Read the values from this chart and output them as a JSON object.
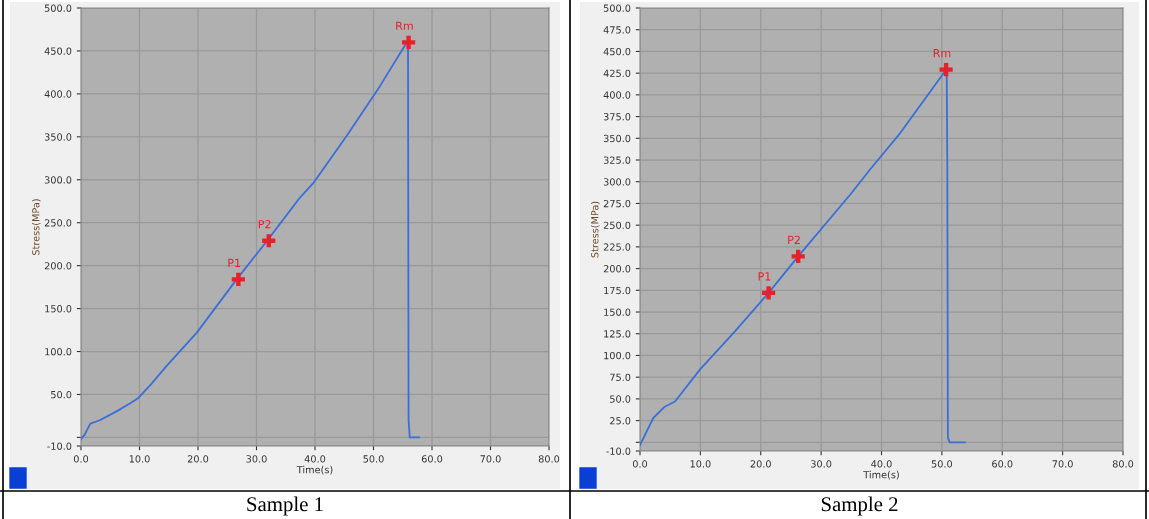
{
  "chart_data": [
    {
      "type": "line",
      "xlabel": "Time(s)",
      "ylabel": "Stress(MPa)",
      "xlim": [
        0,
        80
      ],
      "ylim": [
        -10,
        500
      ],
      "grid": true,
      "xticks": [
        {
          "value": 0,
          "label": "0.0"
        },
        {
          "value": 10,
          "label": "10.0"
        },
        {
          "value": 20,
          "label": "20.0"
        },
        {
          "value": 30,
          "label": "30.0"
        },
        {
          "value": 40,
          "label": "40.0"
        },
        {
          "value": 50,
          "label": "50.0"
        },
        {
          "value": 60,
          "label": "60.0"
        },
        {
          "value": 70,
          "label": "70.0"
        },
        {
          "value": 80,
          "label": "80.0"
        }
      ],
      "yticks": [
        {
          "value": -10,
          "label": "-10.0"
        },
        {
          "value": 0,
          "label": null
        },
        {
          "value": 50,
          "label": "50.0"
        },
        {
          "value": 100,
          "label": "100.0"
        },
        {
          "value": 150,
          "label": "150.0"
        },
        {
          "value": 200,
          "label": "200.0"
        },
        {
          "value": 250,
          "label": "250.0"
        },
        {
          "value": 300,
          "label": "300.0"
        },
        {
          "value": 350,
          "label": "350.0"
        },
        {
          "value": 400,
          "label": "400.0"
        },
        {
          "value": 450,
          "label": "450.0"
        },
        {
          "value": 500,
          "label": "500.0"
        }
      ],
      "series": [
        {
          "color": "#3a6fd8",
          "marker": "none",
          "x": [
            0,
            0.6,
            1.6,
            3.2,
            6,
            8.5,
            9.8,
            12,
            14.6,
            19.8,
            26.6,
            31.7,
            37.4,
            39.7,
            45.4,
            51.1,
            55.6,
            55.9,
            56.0,
            56.2,
            57.8
          ],
          "values": [
            -2,
            3,
            16,
            20,
            30,
            40,
            46,
            62,
            83,
            122,
            184,
            228,
            279,
            296,
            351,
            409,
            459,
            459,
            20,
            0,
            0
          ]
        },
        {
          "type": "scatter",
          "color": "#e8202a",
          "marker": "cross",
          "x": [
            26.9,
            32.1,
            56.0
          ],
          "values": [
            184,
            229,
            460
          ]
        }
      ],
      "annotations": [
        {
          "text": "P1",
          "x": 26.9,
          "y": 184
        },
        {
          "text": "P2",
          "x": 32.1,
          "y": 229
        },
        {
          "text": "Rm",
          "x": 56.0,
          "y": 460
        },
        "Sample 1"
      ]
    },
    {
      "type": "line",
      "xlabel": "Time(s)",
      "ylabel": "Stress(MPa)",
      "xlim": [
        0,
        80
      ],
      "ylim": [
        -10,
        500
      ],
      "grid": true,
      "xticks": [
        {
          "value": 0,
          "label": "0.0"
        },
        {
          "value": 10,
          "label": "10.0"
        },
        {
          "value": 20,
          "label": "20.0"
        },
        {
          "value": 30,
          "label": "30.0"
        },
        {
          "value": 40,
          "label": "40.0"
        },
        {
          "value": 50,
          "label": "50.0"
        },
        {
          "value": 60,
          "label": "60.0"
        },
        {
          "value": 70,
          "label": "70.0"
        },
        {
          "value": 80,
          "label": "80.0"
        }
      ],
      "yticks": [
        {
          "value": -10,
          "label": "-10.0"
        },
        {
          "value": 0,
          "label": null
        },
        {
          "value": 25,
          "label": "25.0"
        },
        {
          "value": 50,
          "label": "50.0"
        },
        {
          "value": 75,
          "label": "75.0"
        },
        {
          "value": 100,
          "label": "100.0"
        },
        {
          "value": 125,
          "label": "125.0"
        },
        {
          "value": 150,
          "label": "150.0"
        },
        {
          "value": 175,
          "label": "175.0"
        },
        {
          "value": 200,
          "label": "200.0"
        },
        {
          "value": 225,
          "label": "225.0"
        },
        {
          "value": 250,
          "label": "250.0"
        },
        {
          "value": 275,
          "label": "275.0"
        },
        {
          "value": 300,
          "label": "300.0"
        },
        {
          "value": 325,
          "label": "325.0"
        },
        {
          "value": 350,
          "label": "350.0"
        },
        {
          "value": 375,
          "label": "375.0"
        },
        {
          "value": 400,
          "label": "400.0"
        },
        {
          "value": 425,
          "label": "425.0"
        },
        {
          "value": 450,
          "label": "450.0"
        },
        {
          "value": 475,
          "label": "475.0"
        },
        {
          "value": 500,
          "label": "500.0"
        }
      ],
      "series": [
        {
          "color": "#3a6fd8",
          "marker": "none",
          "x": [
            0,
            0.3,
            2.2,
            4.1,
            5.8,
            9.95,
            15.5,
            21.3,
            26.2,
            34.8,
            38.1,
            43.1,
            50.7,
            50.8,
            50.9,
            51.0,
            51.3,
            53.8
          ],
          "values": [
            -3,
            1,
            28,
            41,
            47,
            84,
            126,
            172,
            214,
            285,
            314,
            356,
            429,
            429,
            317,
            5,
            0,
            0
          ]
        },
        {
          "type": "scatter",
          "color": "#e8202a",
          "marker": "cross",
          "x": [
            21.3,
            26.2,
            50.7
          ],
          "values": [
            172,
            214,
            429
          ]
        }
      ],
      "annotations": [
        {
          "text": "P1",
          "x": 21.3,
          "y": 172
        },
        {
          "text": "P2",
          "x": 26.2,
          "y": 214
        },
        {
          "text": "Rm",
          "x": 50.7,
          "y": 429
        },
        "Sample 2"
      ]
    }
  ]
}
